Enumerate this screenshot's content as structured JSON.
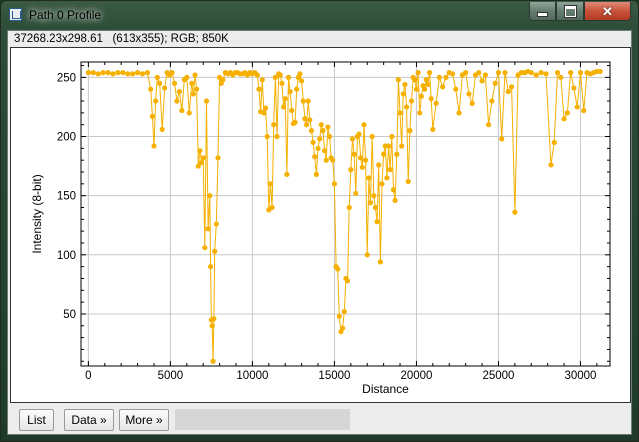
{
  "window": {
    "title": "Path 0 Profile"
  },
  "info_line": "37268.23x298.61   (613x355); RGB; 850K",
  "buttons": {
    "list": "List",
    "data": "Data »",
    "more": "More »"
  },
  "colors": {
    "series": "#f5b000",
    "accent_close": "#c8533a"
  },
  "chart_data": {
    "type": "line",
    "title": "",
    "xlabel": "Distance",
    "ylabel": "Intensity (8-bit)",
    "xlim": [
      -450,
      31800
    ],
    "ylim": [
      6,
      263
    ],
    "xticks": [
      0,
      5000,
      10000,
      15000,
      20000,
      25000,
      30000
    ],
    "yticks": [
      50,
      100,
      150,
      200,
      250
    ],
    "grid": true,
    "series": [
      {
        "name": "",
        "x": [
          0,
          300,
          600,
          900,
          1200,
          1500,
          1800,
          2100,
          2400,
          2700,
          3000,
          3300,
          3600,
          3800,
          3900,
          4000,
          4100,
          4200,
          4350,
          4500,
          4650,
          4800,
          4950,
          5100,
          5250,
          5400,
          5550,
          5700,
          5850,
          6000,
          6150,
          6300,
          6400,
          6500,
          6600,
          6700,
          6800,
          6900,
          7000,
          7100,
          7200,
          7300,
          7400,
          7450,
          7500,
          7550,
          7600,
          7650,
          7700,
          7800,
          7900,
          8000,
          8100,
          8200,
          8350,
          8500,
          8650,
          8800,
          8950,
          9100,
          9250,
          9400,
          9550,
          9700,
          9850,
          10000,
          10150,
          10300,
          10400,
          10500,
          10600,
          10700,
          10800,
          10900,
          11000,
          11100,
          11200,
          11300,
          11400,
          11500,
          11600,
          11700,
          11800,
          11900,
          12000,
          12100,
          12200,
          12300,
          12400,
          12500,
          12600,
          12700,
          12800,
          12900,
          13000,
          13100,
          13200,
          13300,
          13400,
          13500,
          13600,
          13700,
          13800,
          13900,
          14000,
          14100,
          14200,
          14300,
          14400,
          14500,
          14600,
          14700,
          14800,
          14900,
          15000,
          15100,
          15200,
          15300,
          15400,
          15500,
          15600,
          15700,
          15800,
          15900,
          16000,
          16100,
          16200,
          16300,
          16400,
          16500,
          16600,
          16700,
          16800,
          16900,
          17000,
          17100,
          17200,
          17300,
          17400,
          17500,
          17600,
          17700,
          17800,
          17900,
          18000,
          18100,
          18200,
          18300,
          18400,
          18500,
          18600,
          18700,
          18800,
          18900,
          19000,
          19100,
          19200,
          19300,
          19400,
          19500,
          19600,
          19700,
          19800,
          19900,
          20000,
          20100,
          20200,
          20300,
          20400,
          20500,
          20600,
          20700,
          20800,
          20900,
          21000,
          21200,
          21400,
          21600,
          21800,
          22000,
          22200,
          22400,
          22600,
          22800,
          23000,
          23200,
          23400,
          23600,
          23800,
          24000,
          24200,
          24400,
          24600,
          24800,
          25000,
          25200,
          25400,
          25600,
          25800,
          26000,
          26200,
          26400,
          26600,
          26800,
          27000,
          27300,
          27600,
          27900,
          28200,
          28400,
          28600,
          28800,
          29000,
          29200,
          29400,
          29600,
          29800,
          30000,
          30200,
          30400,
          30600,
          30800,
          31000,
          31200
        ],
        "values": [
          254,
          254,
          253,
          254,
          254,
          253,
          254,
          254,
          253,
          253,
          254,
          253,
          254,
          240,
          217,
          192,
          230,
          250,
          245,
          206,
          241,
          254,
          252,
          254,
          245,
          230,
          238,
          222,
          248,
          250,
          220,
          245,
          236,
          252,
          240,
          175,
          188,
          178,
          182,
          106,
          230,
          122,
          150,
          90,
          45,
          40,
          10,
          46,
          103,
          126,
          182,
          250,
          245,
          248,
          254,
          253,
          254,
          252,
          254,
          254,
          253,
          253,
          254,
          252,
          254,
          253,
          254,
          252,
          240,
          221,
          248,
          220,
          224,
          200,
          138,
          160,
          140,
          210,
          250,
          200,
          253,
          252,
          245,
          225,
          232,
          168,
          250,
          238,
          222,
          211,
          212,
          240,
          250,
          253,
          247,
          230,
          215,
          210,
          230,
          214,
          205,
          195,
          183,
          168,
          190,
          198,
          210,
          205,
          188,
          180,
          208,
          200,
          182,
          180,
          160,
          90,
          88,
          48,
          35,
          38,
          52,
          80,
          78,
          140,
          172,
          198,
          185,
          152,
          200,
          202,
          182,
          174,
          210,
          180,
          100,
          165,
          144,
          200,
          150,
          140,
          128,
          176,
          94,
          160,
          185,
          192,
          165,
          192,
          172,
          200,
          155,
          146,
          185,
          248,
          220,
          192,
          236,
          244,
          225,
          162,
          205,
          230,
          250,
          248,
          240,
          254,
          220,
          234,
          243,
          240,
          248,
          244,
          254,
          232,
          206,
          228,
          250,
          242,
          250,
          254,
          253,
          240,
          220,
          252,
          254,
          236,
          228,
          252,
          254,
          247,
          252,
          210,
          230,
          245,
          254,
          198,
          254,
          238,
          242,
          136,
          252,
          254,
          254,
          255,
          254,
          252,
          254,
          253,
          176,
          195,
          254,
          250,
          215,
          220,
          254,
          241,
          225,
          254,
          222,
          254,
          253,
          254,
          255,
          255
        ]
      }
    ]
  }
}
